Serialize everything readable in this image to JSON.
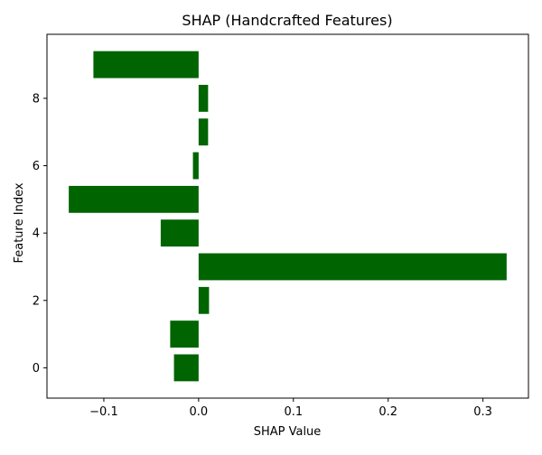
{
  "chart_data": {
    "type": "bar",
    "orientation": "horizontal",
    "title": "SHAP (Handcrafted Features)",
    "xlabel": "SHAP Value",
    "ylabel": "Feature Index",
    "categories": [
      0,
      1,
      2,
      3,
      4,
      5,
      6,
      7,
      8,
      9
    ],
    "values": [
      -0.026,
      -0.03,
      0.011,
      0.325,
      -0.04,
      -0.137,
      -0.006,
      0.01,
      0.01,
      -0.111
    ],
    "xlim": [
      -0.16,
      0.348
    ],
    "ylim": [
      -0.9,
      9.9
    ],
    "xticks": [
      -0.1,
      0.0,
      0.1,
      0.2,
      0.3
    ],
    "xtick_labels": [
      "−0.1",
      "0.0",
      "0.1",
      "0.2",
      "0.3"
    ],
    "yticks": [
      0,
      2,
      4,
      6,
      8
    ],
    "ytick_labels": [
      "0",
      "2",
      "4",
      "6",
      "8"
    ],
    "bar_color": "#006400",
    "grid": false,
    "legend": false
  }
}
